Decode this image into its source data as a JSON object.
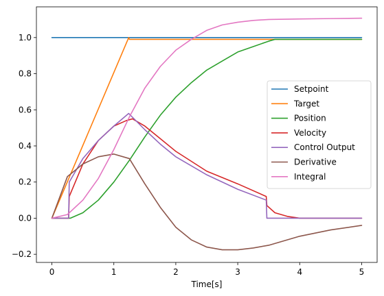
{
  "chart_data": {
    "type": "line",
    "xlabel": "Time[s]",
    "ylabel": "",
    "title": "",
    "xlim": [
      -0.25,
      5.25
    ],
    "ylim": [
      -0.245,
      1.17
    ],
    "xticks": [
      0,
      1,
      2,
      3,
      4,
      5
    ],
    "xtick_labels": [
      "0",
      "1",
      "2",
      "3",
      "4",
      "5"
    ],
    "yticks": [
      -0.2,
      0.0,
      0.2,
      0.4,
      0.6,
      0.8,
      1.0
    ],
    "ytick_labels": [
      "−0.2",
      "0.0",
      "0.2",
      "0.4",
      "0.6",
      "0.8",
      "1.0"
    ],
    "grid": false,
    "legend_position": "center-right",
    "series": [
      {
        "name": "Setpoint",
        "color": "#1f77b4",
        "x": [
          0,
          5
        ],
        "y": [
          1.0,
          1.0
        ]
      },
      {
        "name": "Target",
        "color": "#ff7f0e",
        "x": [
          0,
          1.24,
          1.25,
          5
        ],
        "y": [
          0.0,
          1.0,
          0.99,
          0.99
        ]
      },
      {
        "name": "Position",
        "color": "#2ca02c",
        "x": [
          0,
          0.3,
          0.5,
          0.75,
          1.0,
          1.25,
          1.5,
          1.75,
          2.0,
          2.25,
          2.5,
          2.75,
          3.0,
          3.25,
          3.5,
          3.6,
          4.0,
          4.5,
          5.0
        ],
        "y": [
          0.0,
          0.0,
          0.03,
          0.1,
          0.2,
          0.32,
          0.45,
          0.57,
          0.67,
          0.75,
          0.82,
          0.87,
          0.92,
          0.95,
          0.98,
          0.99,
          0.99,
          0.99,
          0.99
        ]
      },
      {
        "name": "Velocity",
        "color": "#d62728",
        "x": [
          0,
          0.27,
          0.28,
          0.5,
          0.75,
          1.0,
          1.2,
          1.3,
          1.5,
          1.75,
          2.0,
          2.5,
          3.0,
          3.46,
          3.47,
          3.6,
          3.8,
          4.0,
          4.5,
          5.0
        ],
        "y": [
          0.0,
          0.0,
          0.12,
          0.3,
          0.43,
          0.51,
          0.54,
          0.55,
          0.51,
          0.44,
          0.37,
          0.26,
          0.19,
          0.12,
          0.07,
          0.03,
          0.01,
          0.0,
          0.0,
          0.0
        ]
      },
      {
        "name": "Control Output",
        "color": "#9467bd",
        "x": [
          0,
          0.27,
          0.28,
          0.5,
          0.75,
          1.0,
          1.24,
          1.5,
          1.75,
          2.0,
          2.5,
          3.0,
          3.46,
          3.47,
          4.0,
          5.0
        ],
        "y": [
          0.0,
          0.0,
          0.2,
          0.33,
          0.43,
          0.51,
          0.58,
          0.49,
          0.41,
          0.34,
          0.24,
          0.16,
          0.1,
          0.0,
          0.0,
          0.0
        ]
      },
      {
        "name": "Derivative",
        "color": "#8c564b",
        "x": [
          0,
          0.25,
          0.5,
          0.75,
          1.0,
          1.25,
          1.5,
          1.75,
          2.0,
          2.25,
          2.5,
          2.75,
          3.0,
          3.25,
          3.5,
          3.75,
          4.0,
          4.5,
          5.0
        ],
        "y": [
          0.0,
          0.23,
          0.3,
          0.34,
          0.355,
          0.33,
          0.19,
          0.06,
          -0.05,
          -0.12,
          -0.16,
          -0.175,
          -0.175,
          -0.165,
          -0.15,
          -0.125,
          -0.1,
          -0.065,
          -0.04
        ]
      },
      {
        "name": "Integral",
        "color": "#e377c2",
        "x": [
          0,
          0.25,
          0.5,
          0.75,
          1.0,
          1.25,
          1.5,
          1.75,
          2.0,
          2.25,
          2.5,
          2.75,
          3.0,
          3.25,
          3.5,
          4.0,
          4.5,
          5.0
        ],
        "y": [
          0.0,
          0.02,
          0.1,
          0.22,
          0.38,
          0.56,
          0.72,
          0.84,
          0.93,
          0.99,
          1.04,
          1.07,
          1.085,
          1.095,
          1.1,
          1.103,
          1.105,
          1.107
        ]
      }
    ]
  }
}
